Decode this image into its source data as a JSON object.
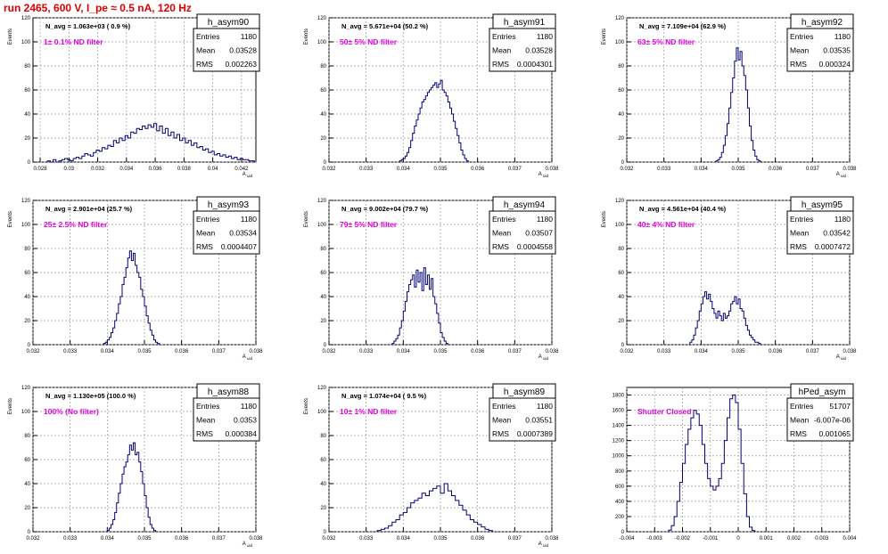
{
  "page_title": "run 2465,   600 V, I_pe ≈ 0.5 nA, 120 Hz",
  "colors": {
    "title": "#e00000",
    "histogram": "#00007a",
    "annotation": "#e000e0",
    "axis": "#000000",
    "grid": "#9a9a9a"
  },
  "chart_data": [
    {
      "type": "histogram",
      "name": "h_asym90",
      "n_avg": "N_avg = 1.063e+03 ( 0.9 %)",
      "filter": "1± 0.1% ND filter",
      "stats": [
        [
          "Entries",
          "1180"
        ],
        [
          "Mean",
          "0.03528"
        ],
        [
          "RMS",
          "0.002263"
        ]
      ],
      "ylabel": "Events",
      "xlabel": "A_uid",
      "xlim": [
        0.0275,
        0.043
      ],
      "ylim": [
        0,
        120
      ],
      "xticks": [
        0.028,
        0.03,
        0.032,
        0.034,
        0.036,
        0.038,
        0.04,
        0.042
      ],
      "xtick_labels": [
        "0.028",
        "0.03",
        "0.032",
        "0.034",
        "0.036",
        "0.038",
        "0.04",
        "0.042"
      ],
      "yticks": [
        0,
        20,
        40,
        60,
        80,
        100,
        120
      ],
      "bin_start": 0.0285,
      "bin_width": 0.0002,
      "counts": [
        1,
        0,
        2,
        0,
        1,
        2,
        3,
        2,
        1,
        3,
        4,
        3,
        5,
        7,
        6,
        5,
        8,
        10,
        9,
        12,
        11,
        14,
        13,
        18,
        16,
        20,
        18,
        22,
        20,
        25,
        24,
        28,
        27,
        30,
        28,
        31,
        29,
        32,
        26,
        30,
        24,
        28,
        22,
        25,
        20,
        23,
        18,
        20,
        16,
        18,
        14,
        16,
        12,
        13,
        10,
        11,
        8,
        9,
        6,
        7,
        5,
        6,
        4,
        5,
        3,
        4,
        2,
        3,
        2,
        2,
        1,
        1
      ]
    },
    {
      "type": "histogram",
      "name": "h_asym91",
      "n_avg": "N_avg = 5.671e+04 (50.2 %)",
      "filter": "50± 5% ND filter",
      "stats": [
        [
          "Entries",
          "1180"
        ],
        [
          "Mean",
          "0.03528"
        ],
        [
          "RMS",
          "0.0004301"
        ]
      ],
      "ylabel": "Events",
      "xlabel": "A_uid",
      "xlim": [
        0.032,
        0.038
      ],
      "ylim": [
        0,
        120
      ],
      "xticks": [
        0.032,
        0.033,
        0.034,
        0.035,
        0.036,
        0.037,
        0.038
      ],
      "xtick_labels": [
        "0.032",
        "0.033",
        "0.034",
        "0.035",
        "0.036",
        "0.037",
        "0.038"
      ],
      "yticks": [
        0,
        20,
        40,
        60,
        80,
        100,
        120
      ],
      "bin_start": 0.0339,
      "bin_width": 5e-05,
      "counts": [
        1,
        2,
        3,
        5,
        8,
        12,
        18,
        24,
        30,
        35,
        40,
        45,
        50,
        52,
        55,
        58,
        60,
        62,
        64,
        66,
        62,
        65,
        68,
        60,
        58,
        55,
        50,
        45,
        40,
        34,
        28,
        22,
        16,
        10,
        6,
        3,
        1
      ]
    },
    {
      "type": "histogram",
      "name": "h_asym92",
      "n_avg": "N_avg = 7.109e+04 (62.9 %)",
      "filter": "63± 5% ND filter",
      "stats": [
        [
          "Entries",
          "1180"
        ],
        [
          "Mean",
          "0.03535"
        ],
        [
          "RMS",
          "0.000324"
        ]
      ],
      "ylabel": "Events",
      "xlabel": "A_uid",
      "xlim": [
        0.032,
        0.038
      ],
      "ylim": [
        0,
        120
      ],
      "xticks": [
        0.032,
        0.033,
        0.034,
        0.035,
        0.036,
        0.037,
        0.038
      ],
      "xtick_labels": [
        "0.032",
        "0.033",
        "0.034",
        "0.035",
        "0.036",
        "0.037",
        "0.038"
      ],
      "yticks": [
        0,
        20,
        40,
        60,
        80,
        100,
        120
      ],
      "bin_start": 0.0344,
      "bin_width": 5e-05,
      "counts": [
        1,
        2,
        4,
        8,
        14,
        22,
        32,
        45,
        58,
        70,
        84,
        95,
        85,
        92,
        80,
        72,
        60,
        45,
        30,
        18,
        10,
        5,
        2,
        1
      ]
    },
    {
      "type": "histogram",
      "name": "h_asym93",
      "n_avg": "N_avg = 2.901e+04 (25.7 %)",
      "filter": "25± 2.5% ND filter",
      "stats": [
        [
          "Entries",
          "1180"
        ],
        [
          "Mean",
          "0.03534"
        ],
        [
          "RMS",
          "0.0004407"
        ]
      ],
      "ylabel": "Events",
      "xlabel": "A_uid",
      "xlim": [
        0.032,
        0.038
      ],
      "ylim": [
        0,
        120
      ],
      "xticks": [
        0.032,
        0.033,
        0.034,
        0.035,
        0.036,
        0.037,
        0.038
      ],
      "xtick_labels": [
        "0.032",
        "0.033",
        "0.034",
        "0.035",
        "0.036",
        "0.037",
        "0.038"
      ],
      "yticks": [
        0,
        20,
        40,
        60,
        80,
        100,
        120
      ],
      "bin_start": 0.0339,
      "bin_width": 5e-05,
      "counts": [
        1,
        2,
        4,
        6,
        10,
        14,
        20,
        26,
        34,
        40,
        50,
        56,
        64,
        72,
        78,
        70,
        76,
        66,
        60,
        56,
        46,
        40,
        32,
        24,
        18,
        12,
        8,
        4,
        2,
        1
      ]
    },
    {
      "type": "histogram",
      "name": "h_asym94",
      "n_avg": "N_avg = 9.002e+04 (79.7 %)",
      "filter": "79± 5% ND filter",
      "stats": [
        [
          "Entries",
          "1180"
        ],
        [
          "Mean",
          "0.03507"
        ],
        [
          "RMS",
          "0.0004558"
        ]
      ],
      "ylabel": "Events",
      "xlabel": "A_uid",
      "xlim": [
        0.032,
        0.038
      ],
      "ylim": [
        0,
        120
      ],
      "xticks": [
        0.032,
        0.033,
        0.034,
        0.035,
        0.036,
        0.037,
        0.038
      ],
      "xtick_labels": [
        "0.032",
        "0.033",
        "0.034",
        "0.035",
        "0.036",
        "0.037",
        "0.038"
      ],
      "yticks": [
        0,
        20,
        40,
        60,
        80,
        100,
        120
      ],
      "bin_start": 0.0337,
      "bin_width": 5e-05,
      "counts": [
        1,
        3,
        5,
        8,
        14,
        20,
        28,
        36,
        44,
        50,
        54,
        58,
        48,
        62,
        52,
        60,
        45,
        64,
        50,
        58,
        46,
        55,
        40,
        34,
        26,
        18,
        10,
        6,
        3,
        1
      ]
    },
    {
      "type": "histogram",
      "name": "h_asym95",
      "n_avg": "N_avg = 4.561e+04 (40.4 %)",
      "filter": "40± 4% ND filter",
      "stats": [
        [
          "Entries",
          "1180"
        ],
        [
          "Mean",
          "0.03542"
        ],
        [
          "RMS",
          "0.0007472"
        ]
      ],
      "ylabel": "Events",
      "xlabel": "A_uid",
      "xlim": [
        0.032,
        0.038
      ],
      "ylim": [
        0,
        120
      ],
      "xticks": [
        0.032,
        0.033,
        0.034,
        0.035,
        0.036,
        0.037,
        0.038
      ],
      "xtick_labels": [
        "0.032",
        "0.033",
        "0.034",
        "0.035",
        "0.036",
        "0.037",
        "0.038"
      ],
      "yticks": [
        0,
        20,
        40,
        60,
        80,
        100,
        120
      ],
      "bin_start": 0.0337,
      "bin_width": 5e-05,
      "counts": [
        2,
        4,
        8,
        14,
        20,
        28,
        34,
        40,
        44,
        38,
        42,
        36,
        30,
        26,
        22,
        28,
        24,
        20,
        26,
        22,
        24,
        28,
        34,
        36,
        40,
        34,
        38,
        30,
        28,
        22,
        16,
        12,
        8,
        6,
        4,
        2,
        2,
        1
      ]
    },
    {
      "type": "histogram",
      "name": "h_asym88",
      "n_avg": "N_avg = 1.130e+05 (100.0 %)",
      "filter": "100% (No filter)",
      "stats": [
        [
          "Entries",
          "1180"
        ],
        [
          "Mean",
          "0.0353"
        ],
        [
          "RMS",
          "0.000384"
        ]
      ],
      "ylabel": "Events",
      "xlabel": "A_uid",
      "xlim": [
        0.032,
        0.038
      ],
      "ylim": [
        0,
        120
      ],
      "xticks": [
        0.032,
        0.033,
        0.034,
        0.035,
        0.036,
        0.037,
        0.038
      ],
      "xtick_labels": [
        "0.032",
        "0.033",
        "0.034",
        "0.035",
        "0.036",
        "0.037",
        "0.038"
      ],
      "yticks": [
        0,
        20,
        40,
        60,
        80,
        100,
        120
      ],
      "bin_start": 0.034,
      "bin_width": 5e-05,
      "counts": [
        1,
        3,
        6,
        10,
        16,
        24,
        32,
        40,
        48,
        54,
        58,
        64,
        72,
        68,
        74,
        64,
        66,
        58,
        50,
        40,
        30,
        20,
        12,
        6,
        3,
        1
      ]
    },
    {
      "type": "histogram",
      "name": "h_asym89",
      "n_avg": "N_avg = 1.074e+04 ( 9.5 %)",
      "filter": "10± 1% ND filter",
      "stats": [
        [
          "Entries",
          "1180"
        ],
        [
          "Mean",
          "0.03551"
        ],
        [
          "RMS",
          "0.0007389"
        ]
      ],
      "ylabel": "Events",
      "xlabel": "A_uid",
      "xlim": [
        0.032,
        0.038
      ],
      "ylim": [
        0,
        120
      ],
      "xticks": [
        0.032,
        0.033,
        0.034,
        0.035,
        0.036,
        0.037,
        0.038
      ],
      "xtick_labels": [
        "0.032",
        "0.033",
        "0.034",
        "0.035",
        "0.036",
        "0.037",
        "0.038"
      ],
      "yticks": [
        0,
        20,
        40,
        60,
        80,
        100,
        120
      ],
      "bin_start": 0.0333,
      "bin_width": 0.0001,
      "counts": [
        1,
        2,
        3,
        5,
        8,
        10,
        14,
        16,
        20,
        24,
        26,
        28,
        32,
        30,
        34,
        36,
        38,
        32,
        40,
        34,
        30,
        26,
        22,
        18,
        14,
        10,
        8,
        6,
        4,
        2,
        1
      ]
    },
    {
      "type": "histogram",
      "name": "hPed_asym",
      "n_avg": "",
      "filter": "Shutter Closed",
      "stats": [
        [
          "Entries",
          "51707"
        ],
        [
          "Mean",
          "-6.007e-06"
        ],
        [
          "RMS",
          "0.001065"
        ]
      ],
      "ylabel": "",
      "xlabel": "",
      "xlim": [
        -0.004,
        0.004
      ],
      "ylim": [
        0,
        1900
      ],
      "xticks": [
        -0.004,
        -0.003,
        -0.002,
        -0.001,
        0,
        0.001,
        0.002,
        0.003,
        0.004
      ],
      "xtick_labels": [
        "-0.004",
        "-0.003",
        "-0.002",
        "-0.001",
        "0",
        "0.001",
        "0.002",
        "0.003",
        "0.004"
      ],
      "yticks": [
        0,
        200,
        400,
        600,
        800,
        1000,
        1200,
        1400,
        1600,
        1800
      ],
      "bin_start": -0.0025,
      "bin_width": 0.0001,
      "counts": [
        20,
        80,
        200,
        400,
        650,
        900,
        1150,
        1350,
        1500,
        1600,
        1550,
        1400,
        1150,
        900,
        700,
        600,
        550,
        600,
        700,
        900,
        1200,
        1500,
        1750,
        1800,
        1700,
        1350,
        900,
        500,
        200,
        60,
        15
      ]
    }
  ]
}
